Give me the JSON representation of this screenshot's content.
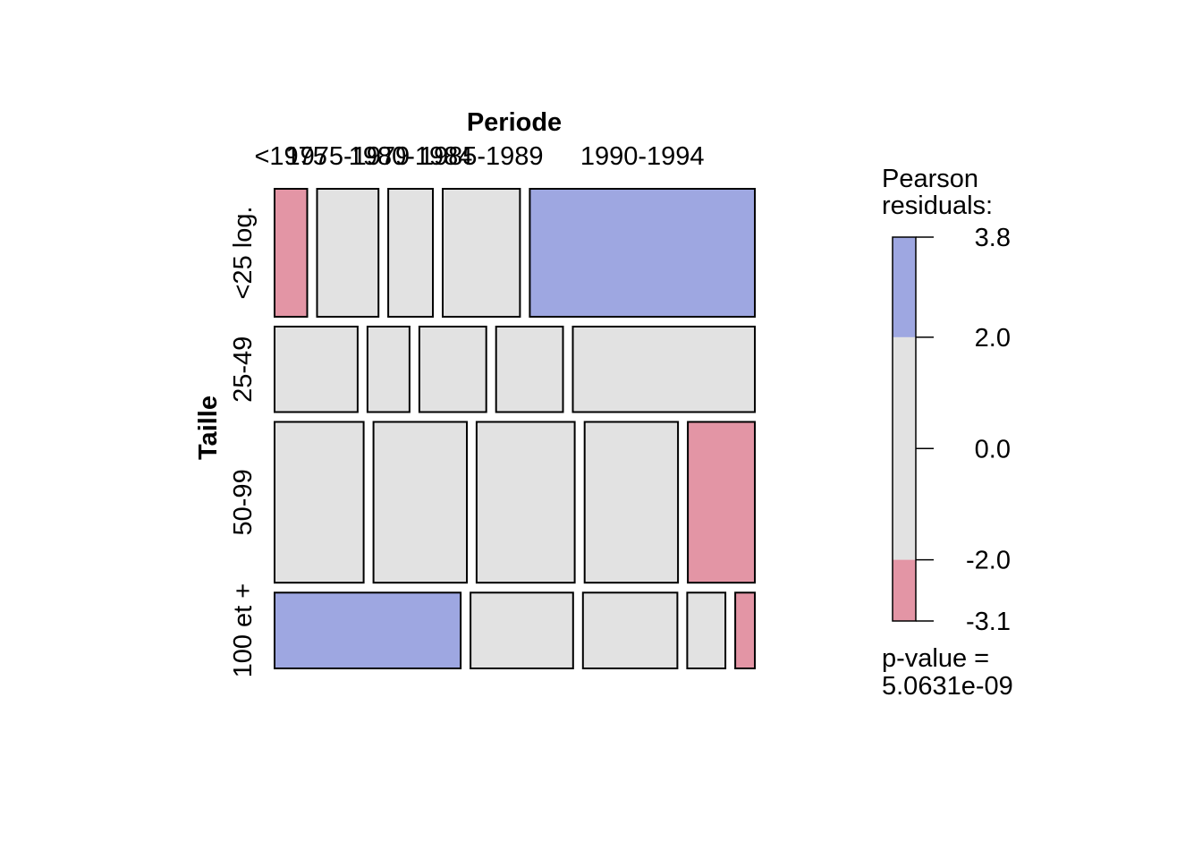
{
  "chart_data": {
    "type": "mosaic",
    "title": "",
    "xlabel": "Periode",
    "ylabel": "Taille",
    "x_categories": [
      "<1975",
      "1975-1979",
      "1980-1984",
      "1985-1989",
      "1990-1994"
    ],
    "y_categories": [
      "<25 log.",
      "25-49",
      "50-99",
      "100 et +"
    ],
    "row_shares": [
      0.265,
      0.177,
      0.333,
      0.157
    ],
    "cells": [
      [
        {
          "x": "<1975",
          "share": 0.068,
          "residual_band": "negative"
        },
        {
          "x": "1975-1979",
          "share": 0.128,
          "residual_band": "neutral"
        },
        {
          "x": "1980-1984",
          "share": 0.093,
          "residual_band": "neutral"
        },
        {
          "x": "1985-1989",
          "share": 0.161,
          "residual_band": "neutral"
        },
        {
          "x": "1990-1994",
          "share": 0.469,
          "residual_band": "positive"
        }
      ],
      [
        {
          "x": "<1975",
          "share": 0.174,
          "residual_band": "neutral"
        },
        {
          "x": "1975-1979",
          "share": 0.088,
          "residual_band": "neutral"
        },
        {
          "x": "1980-1984",
          "share": 0.14,
          "residual_band": "neutral"
        },
        {
          "x": "1985-1989",
          "share": 0.14,
          "residual_band": "neutral"
        },
        {
          "x": "1990-1994",
          "share": 0.381,
          "residual_band": "neutral"
        }
      ],
      [
        {
          "x": "<1975",
          "share": 0.186,
          "residual_band": "neutral"
        },
        {
          "x": "1975-1979",
          "share": 0.195,
          "residual_band": "neutral"
        },
        {
          "x": "1980-1984",
          "share": 0.205,
          "residual_band": "neutral"
        },
        {
          "x": "1985-1989",
          "share": 0.195,
          "residual_band": "neutral"
        },
        {
          "x": "1990-1994",
          "share": 0.14,
          "residual_band": "negative"
        }
      ],
      [
        {
          "x": "<1975",
          "share": 0.39,
          "residual_band": "positive"
        },
        {
          "x": "1975-1979",
          "share": 0.215,
          "residual_band": "neutral"
        },
        {
          "x": "1980-1984",
          "share": 0.198,
          "residual_band": "neutral"
        },
        {
          "x": "1985-1989",
          "share": 0.08,
          "residual_band": "neutral"
        },
        {
          "x": "1990-1994",
          "share": 0.041,
          "residual_band": "negative"
        }
      ]
    ],
    "legend": {
      "title_line1": "Pearson",
      "title_line2": "residuals:",
      "range": [
        -3.1,
        3.8
      ],
      "ticks": [
        {
          "value": 3.8,
          "label": "3.8"
        },
        {
          "value": 2.0,
          "label": "2.0"
        },
        {
          "value": 0.0,
          "label": "0.0"
        },
        {
          "value": -2.0,
          "label": "-2.0"
        },
        {
          "value": -3.1,
          "label": "-3.1"
        }
      ],
      "placement": "right",
      "pvalue_line1": "p-value =",
      "pvalue_line2": "5.0631e-09"
    },
    "colors": {
      "positive": "#9ea7e1",
      "neutral": "#e2e2e2",
      "negative": "#e395a5"
    }
  }
}
